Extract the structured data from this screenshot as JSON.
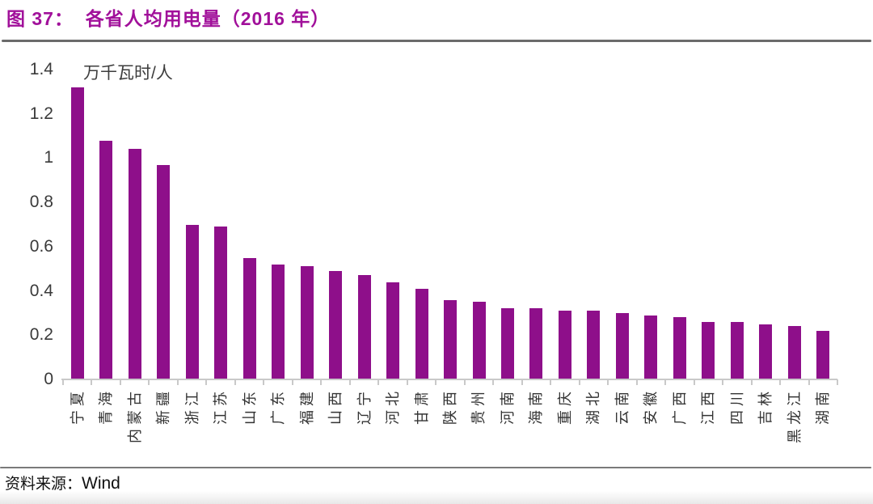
{
  "header": {
    "title": "图 37：  各省人均用电量（2016 年）"
  },
  "chart_data": {
    "type": "bar",
    "title": "各省人均用电量（2016 年）",
    "unit_label": "万千瓦时/人",
    "ylabel": "万千瓦时/人",
    "ylim": [
      0,
      1.4
    ],
    "yticks": [
      "1.4",
      "1.2",
      "1",
      "0.8",
      "0.6",
      "0.4",
      "0.2",
      "0"
    ],
    "grid": "off",
    "legend": "none",
    "bar_color": "#8E0F8A",
    "categories": [
      "宁夏",
      "青海",
      "内蒙古",
      "新疆",
      "浙江",
      "江苏",
      "山东",
      "广东",
      "福建",
      "山西",
      "辽宁",
      "河北",
      "甘肃",
      "陕西",
      "贵州",
      "河南",
      "海南",
      "重庆",
      "湖北",
      "云南",
      "安徽",
      "广西",
      "江西",
      "四川",
      "吉林",
      "黑龙江",
      "湖南"
    ],
    "values": [
      1.32,
      1.08,
      1.04,
      0.97,
      0.7,
      0.69,
      0.55,
      0.52,
      0.51,
      0.49,
      0.47,
      0.44,
      0.41,
      0.36,
      0.35,
      0.32,
      0.32,
      0.31,
      0.31,
      0.3,
      0.29,
      0.28,
      0.26,
      0.26,
      0.25,
      0.24,
      0.22
    ]
  },
  "footer": {
    "source_label": "资料来源：",
    "source_value": "Wind"
  },
  "colors": {
    "accent_title": "#A1109A",
    "bar": "#8E0F8A",
    "axis_text": "#3A3A3A",
    "axis_line": "#C9C9C9",
    "divider": "#6B6B6B"
  }
}
